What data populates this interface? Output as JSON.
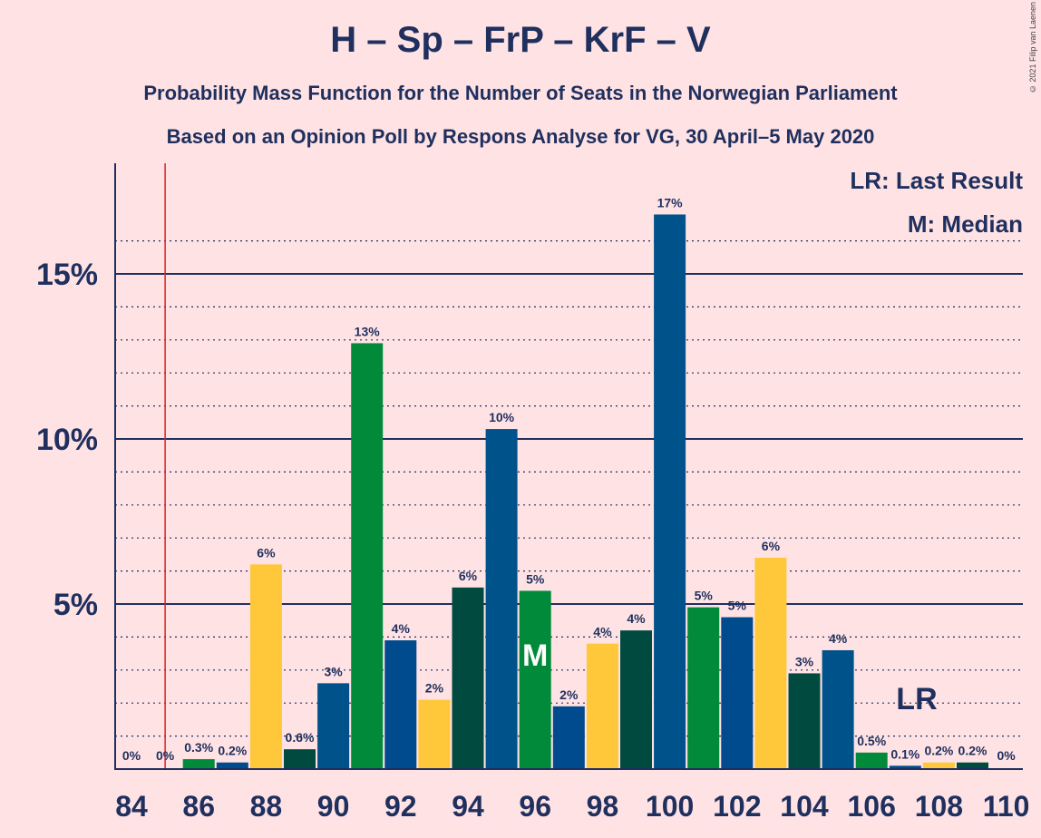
{
  "title": "H – Sp – FrP – KrF – V",
  "subtitle1": "Probability Mass Function for the Number of Seats in the Norwegian Parliament",
  "subtitle2": "Based on an Opinion Poll by Respons Analyse for VG, 30 April–5 May 2020",
  "copyright": "© 2021 Filip van Laenen",
  "legend": {
    "lr": "LR: Last Result",
    "median": "M: Median"
  },
  "markers": {
    "lr_label": "LR",
    "median_label": "M"
  },
  "colors": {
    "H": "#00538a",
    "Sp": "#008a3a",
    "FrP": "#ffc73a",
    "KrF": "#004a40",
    "V": "#004a8e",
    "lr_line": "#e02020"
  },
  "chart_data": {
    "type": "bar",
    "x": [
      84,
      85,
      86,
      87,
      88,
      89,
      90,
      91,
      92,
      93,
      94,
      95,
      96,
      97,
      98,
      99,
      100,
      101,
      102,
      103,
      104,
      105,
      106,
      107,
      108,
      109,
      110
    ],
    "values": [
      0,
      0,
      0.3,
      0.2,
      6.2,
      0.6,
      2.6,
      12.9,
      3.9,
      2.1,
      5.5,
      10.3,
      5.4,
      1.9,
      3.8,
      4.2,
      16.8,
      4.9,
      4.6,
      6.4,
      2.9,
      3.6,
      0.5,
      0.1,
      0.2,
      0.2,
      0
    ],
    "labels": [
      "0%",
      "0%",
      "0.3%",
      "0.2%",
      "6%",
      "0.6%",
      "3%",
      "13%",
      "4%",
      "2%",
      "6%",
      "10%",
      "5%",
      "2%",
      "4%",
      "4%",
      "17%",
      "5%",
      "5%",
      "6%",
      "3%",
      "4%",
      "0.5%",
      "0.1%",
      "0.2%",
      "0.2%",
      "0%"
    ],
    "party_colors": [
      "H",
      "Sp",
      "Sp",
      "V",
      "FrP",
      "KrF",
      "H",
      "Sp",
      "V",
      "FrP",
      "KrF",
      "H",
      "Sp",
      "V",
      "FrP",
      "KrF",
      "H",
      "Sp",
      "V",
      "FrP",
      "KrF",
      "H",
      "Sp",
      "V",
      "FrP",
      "KrF",
      "H"
    ],
    "x_tick_labels": [
      "84",
      "86",
      "88",
      "90",
      "92",
      "94",
      "96",
      "98",
      "100",
      "102",
      "104",
      "106",
      "108",
      "110"
    ],
    "y_tick_labels": [
      "5%",
      "10%",
      "15%"
    ],
    "y_ticks": [
      5,
      10,
      15
    ],
    "ylim": [
      0,
      18.5
    ],
    "last_result_seat": 85,
    "median_seat": 96,
    "lr_label_seat": 107
  }
}
